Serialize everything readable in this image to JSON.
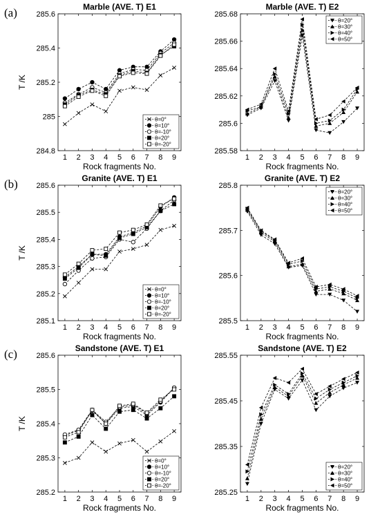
{
  "panel_labels": [
    "(a)",
    "(b)",
    "(c)"
  ],
  "chart_data": [
    {
      "type": "line",
      "title": "Marble (AVE. T) E1",
      "xlabel": "Rock fragments No.",
      "ylabel": "T /K",
      "x": [
        1,
        2,
        3,
        4,
        5,
        6,
        7,
        8,
        9
      ],
      "ylim": [
        284.8,
        285.6
      ],
      "yticks": [
        "284.8",
        "285",
        "285.2",
        "285.4",
        "285.6"
      ],
      "legend_position": "bottom-right",
      "series": [
        {
          "name": "θ=0°",
          "marker": "x",
          "values": [
            284.955,
            285.02,
            285.07,
            285.03,
            285.15,
            285.17,
            285.155,
            285.24,
            285.285
          ]
        },
        {
          "name": "θ=10°",
          "marker": "filled-circle",
          "values": [
            285.105,
            285.16,
            285.2,
            285.16,
            285.27,
            285.29,
            285.29,
            285.38,
            285.45
          ]
        },
        {
          "name": "θ=-10°",
          "marker": "open-circle",
          "values": [
            285.08,
            285.13,
            285.17,
            285.14,
            285.25,
            285.275,
            285.27,
            285.37,
            285.43
          ]
        },
        {
          "name": "θ=20°",
          "marker": "filled-square",
          "values": [
            285.07,
            285.125,
            285.155,
            285.13,
            285.24,
            285.265,
            285.255,
            285.36,
            285.41
          ]
        },
        {
          "name": "θ=-20°",
          "marker": "open-square",
          "values": [
            285.06,
            285.115,
            285.15,
            285.12,
            285.235,
            285.255,
            285.25,
            285.355,
            285.42
          ]
        }
      ]
    },
    {
      "type": "line",
      "title": "Marble (AVE. T) E2",
      "xlabel": "Rock fragments No.",
      "ylabel": "",
      "x": [
        1,
        2,
        3,
        4,
        5,
        6,
        7,
        8,
        9
      ],
      "ylim": [
        285.58,
        285.68
      ],
      "yticks": [
        "285.58",
        "285.6",
        "285.62",
        "285.64",
        "285.66",
        "285.68"
      ],
      "legend_position": "top-right",
      "series": [
        {
          "name": "θ=20°",
          "marker": "triangle-down",
          "values": [
            285.606,
            285.611,
            285.631,
            285.602,
            285.664,
            285.595,
            285.593,
            285.601,
            285.611
          ]
        },
        {
          "name": "θ=30°",
          "marker": "triangle-up",
          "values": [
            285.607,
            285.612,
            285.634,
            285.604,
            285.668,
            285.598,
            285.6,
            285.608,
            285.623
          ]
        },
        {
          "name": "θ=40°",
          "marker": "triangle-right",
          "values": [
            285.609,
            285.612,
            285.636,
            285.607,
            285.672,
            285.6,
            285.602,
            285.61,
            285.625
          ]
        },
        {
          "name": "θ=50°",
          "marker": "triangle-left",
          "values": [
            285.61,
            285.614,
            285.64,
            285.609,
            285.676,
            285.603,
            285.606,
            285.616,
            285.626
          ]
        }
      ]
    },
    {
      "type": "line",
      "title": "Granite (AVE. T) E1",
      "xlabel": "Rock fragments No.",
      "ylabel": "T /K",
      "x": [
        1,
        2,
        3,
        4,
        5,
        6,
        7,
        8,
        9
      ],
      "ylim": [
        285.1,
        285.6
      ],
      "yticks": [
        "285.1",
        "285.2",
        "285.3",
        "285.4",
        "285.5",
        "285.6"
      ],
      "legend_position": "bottom-right",
      "series": [
        {
          "name": "θ=0°",
          "marker": "x",
          "values": [
            285.19,
            285.24,
            285.29,
            285.29,
            285.355,
            285.365,
            285.38,
            285.435,
            285.45
          ]
        },
        {
          "name": "θ=10°",
          "marker": "filled-circle",
          "values": [
            285.26,
            285.3,
            285.345,
            285.345,
            285.41,
            285.425,
            285.45,
            285.52,
            285.555
          ]
        },
        {
          "name": "θ=-10°",
          "marker": "open-circle",
          "values": [
            285.235,
            285.285,
            285.33,
            285.335,
            285.4,
            285.39,
            285.44,
            285.505,
            285.545
          ]
        },
        {
          "name": "θ=20°",
          "marker": "filled-square",
          "values": [
            285.255,
            285.295,
            285.345,
            285.34,
            285.405,
            285.42,
            285.445,
            285.505,
            285.53
          ]
        },
        {
          "name": "θ=-20°",
          "marker": "open-square",
          "values": [
            285.27,
            285.31,
            285.36,
            285.365,
            285.425,
            285.435,
            285.455,
            285.525,
            285.55
          ]
        }
      ]
    },
    {
      "type": "line",
      "title": "Granite (AVE. T) E2",
      "xlabel": "Rock fragments No.",
      "ylabel": "",
      "x": [
        1,
        2,
        3,
        4,
        5,
        6,
        7,
        8,
        9
      ],
      "ylim": [
        285.5,
        285.8
      ],
      "yticks": [
        "285.5",
        "285.6",
        "285.7",
        "285.8"
      ],
      "legend_position": "top-right",
      "series": [
        {
          "name": "θ=20°",
          "marker": "triangle-down",
          "values": [
            285.742,
            285.69,
            285.67,
            285.618,
            285.622,
            285.558,
            285.558,
            285.545,
            285.52
          ]
        },
        {
          "name": "θ=30°",
          "marker": "triangle-up",
          "values": [
            285.745,
            285.695,
            285.675,
            285.62,
            285.625,
            285.565,
            285.57,
            285.56,
            285.545
          ]
        },
        {
          "name": "θ=40°",
          "marker": "triangle-right",
          "values": [
            285.748,
            285.698,
            285.678,
            285.625,
            285.632,
            285.57,
            285.575,
            285.565,
            285.55
          ]
        },
        {
          "name": "θ=50°",
          "marker": "triangle-left",
          "values": [
            285.75,
            285.7,
            285.68,
            285.628,
            285.638,
            285.575,
            285.58,
            285.57,
            285.555
          ]
        }
      ]
    },
    {
      "type": "line",
      "title": "Sandstone (AVE. T) E1",
      "xlabel": "Rock fragments No.",
      "ylabel": "T /K",
      "x": [
        1,
        2,
        3,
        4,
        5,
        6,
        7,
        8,
        9
      ],
      "ylim": [
        285.2,
        285.6
      ],
      "yticks": [
        "285.2",
        "285.3",
        "285.4",
        "285.5",
        "285.6"
      ],
      "legend_position": "bottom-right",
      "series": [
        {
          "name": "θ=0°",
          "marker": "x",
          "values": [
            285.285,
            285.3,
            285.345,
            285.318,
            285.342,
            285.352,
            285.318,
            285.348,
            285.378
          ]
        },
        {
          "name": "θ=10°",
          "marker": "filled-circle",
          "values": [
            285.365,
            285.38,
            285.438,
            285.4,
            285.445,
            285.45,
            285.425,
            285.462,
            285.505
          ]
        },
        {
          "name": "θ=-10°",
          "marker": "open-circle",
          "values": [
            285.368,
            285.382,
            285.44,
            285.405,
            285.448,
            285.455,
            285.43,
            285.465,
            285.505
          ]
        },
        {
          "name": "θ=20°",
          "marker": "filled-square",
          "values": [
            285.345,
            285.362,
            285.425,
            285.385,
            285.435,
            285.44,
            285.415,
            285.445,
            285.48
          ]
        },
        {
          "name": "θ=-20°",
          "marker": "open-square",
          "values": [
            285.36,
            285.375,
            285.44,
            285.4,
            285.452,
            285.458,
            285.432,
            285.47,
            285.5
          ]
        }
      ]
    },
    {
      "type": "line",
      "title": "Sandstone (AVE. T) E2",
      "xlabel": "Rock fragments No.",
      "ylabel": "",
      "x": [
        1,
        2,
        3,
        4,
        5,
        6,
        7,
        8,
        9
      ],
      "ylim": [
        285.25,
        285.55
      ],
      "yticks": [
        "285.25",
        "285.35",
        "285.45",
        "285.55"
      ],
      "legend_position": "bottom-right",
      "series": [
        {
          "name": "θ=20°",
          "marker": "triangle-down",
          "values": [
            285.268,
            285.4,
            285.475,
            285.455,
            285.495,
            285.43,
            285.46,
            285.478,
            285.49
          ]
        },
        {
          "name": "θ=30°",
          "marker": "triangle-up",
          "values": [
            285.28,
            285.41,
            285.48,
            285.46,
            285.505,
            285.445,
            285.468,
            285.485,
            285.5
          ]
        },
        {
          "name": "θ=40°",
          "marker": "triangle-right",
          "values": [
            285.295,
            285.42,
            285.485,
            285.465,
            285.51,
            285.455,
            285.475,
            285.49,
            285.505
          ]
        },
        {
          "name": "θ=50°",
          "marker": "triangle-left",
          "values": [
            285.31,
            285.435,
            285.5,
            285.49,
            285.52,
            285.465,
            285.482,
            285.498,
            285.512
          ]
        }
      ]
    }
  ]
}
